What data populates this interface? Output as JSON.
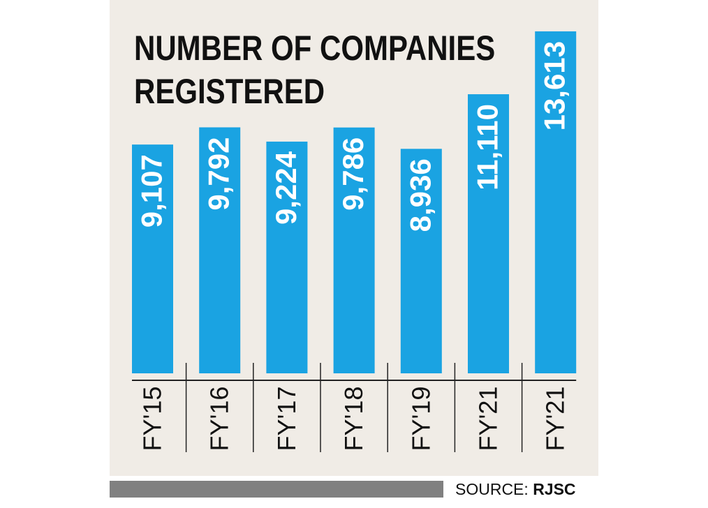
{
  "chart_data": {
    "type": "bar",
    "title": "NUMBER OF COMPANIES REGISTERED",
    "title_lines": [
      "NUMBER OF COMPANIES",
      "REGISTERED"
    ],
    "categories": [
      "FY'15",
      "FY'16",
      "FY'17",
      "FY'18",
      "FY'19",
      "FY'21",
      "FY'21"
    ],
    "values": [
      9107,
      9792,
      9224,
      9786,
      8936,
      11110,
      13613
    ],
    "value_labels": [
      "9,107",
      "9,792",
      "9,224",
      "9,786",
      "8,936",
      "11,110",
      "13,613"
    ],
    "xlabel": "",
    "ylabel": "",
    "grid": false,
    "legend": "none",
    "bar_color": "#1aa3e2",
    "value_label_color": "#ffffff",
    "background_color": "#f0ece6"
  },
  "source": {
    "label": "SOURCE:",
    "name": "RJSC"
  }
}
